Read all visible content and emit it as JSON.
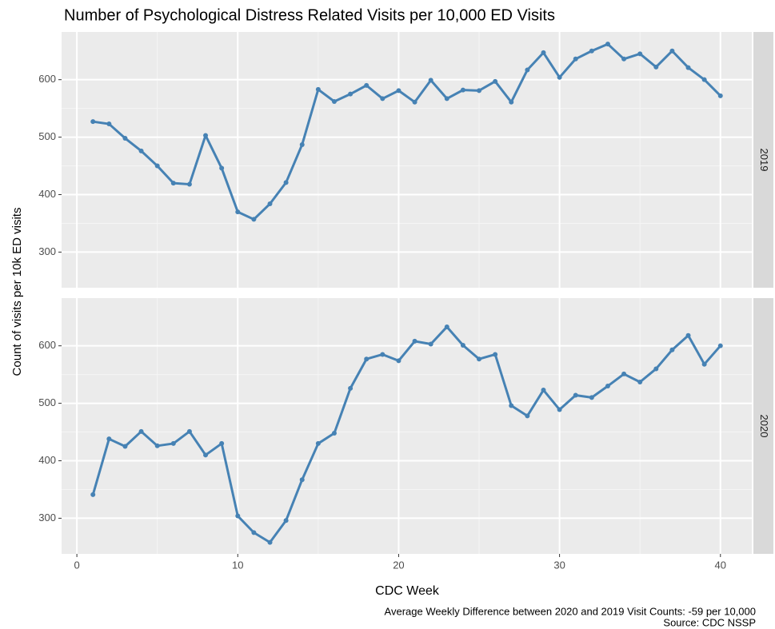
{
  "chart_data": {
    "type": "line",
    "title": "Number of Psychological Distress Related Visits per 10,000 ED Visits",
    "x_label": "CDC Week",
    "y_label": "Count of visits per 10k ED visits",
    "caption": [
      "Average Weekly Difference between 2020 and 2019 Visit Counts: -59 per 10,000",
      "Source: CDC NSSP"
    ],
    "x": [
      1,
      2,
      3,
      4,
      5,
      6,
      7,
      8,
      9,
      10,
      11,
      12,
      13,
      14,
      15,
      16,
      17,
      18,
      19,
      20,
      21,
      22,
      23,
      24,
      25,
      26,
      27,
      28,
      29,
      30,
      31,
      32,
      33,
      34,
      35,
      36,
      37,
      38,
      39,
      40
    ],
    "xlim": [
      -0.95,
      41.95
    ],
    "xticks": [
      0,
      10,
      20,
      30,
      40
    ],
    "ylim": [
      238,
      683
    ],
    "yticks": [
      300,
      400,
      500,
      600
    ],
    "grid": true,
    "facets": true,
    "series": [
      {
        "name": "2019",
        "color": "#4682b4",
        "values": [
          527,
          523,
          498,
          476,
          450,
          420,
          418,
          503,
          446,
          370,
          357,
          384,
          421,
          487,
          583,
          562,
          575,
          590,
          567,
          581,
          561,
          599,
          567,
          582,
          581,
          597,
          561,
          617,
          647,
          604,
          636,
          650,
          662,
          636,
          645,
          622,
          650,
          621,
          600,
          572
        ]
      },
      {
        "name": "2020",
        "color": "#4682b4",
        "values": [
          341,
          438,
          425,
          451,
          426,
          430,
          451,
          410,
          430,
          304,
          275,
          258,
          296,
          367,
          430,
          448,
          526,
          577,
          585,
          574,
          608,
          603,
          633,
          601,
          577,
          585,
          496,
          478,
          523,
          489,
          514,
          510,
          530,
          551,
          537,
          560,
          593,
          618,
          568,
          600
        ]
      }
    ]
  }
}
